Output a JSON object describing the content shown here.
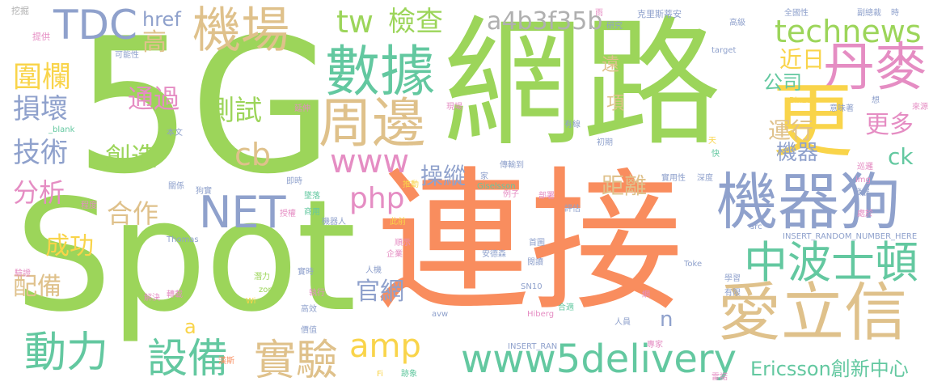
{
  "palette": [
    "#9cd55a",
    "#f98d5e",
    "#dfc18b",
    "#8fa1cc",
    "#e58dc3",
    "#63c8a0",
    "#f9d44a",
    "#b0b0b0"
  ],
  "words": [
    {
      "text": "網路",
      "color": "#9cd55a",
      "vertical": false
    },
    {
      "text": "連接",
      "color": "#f98d5e",
      "vertical": false
    },
    {
      "text": "5G",
      "color": "#9cd55a",
      "vertical": false
    },
    {
      "text": "Spot",
      "color": "#9cd55a",
      "vertical": false
    },
    {
      "text": "機器狗",
      "color": "#8fa1cc",
      "vertical": false
    },
    {
      "text": "愛立信",
      "color": "#dfc18b",
      "vertical": false
    },
    {
      "text": "數據",
      "color": "#63c8a0",
      "vertical": false
    },
    {
      "text": "機場",
      "color": "#dfc18b",
      "vertical": false
    },
    {
      "text": "丹麥",
      "color": "#e58dc3",
      "vertical": false
    },
    {
      "text": "更",
      "color": "#f9d44a",
      "vertical": false
    },
    {
      "text": "周邊",
      "color": "#dfc18b",
      "vertical": false
    },
    {
      "text": "中波士頓",
      "color": "#63c8a0",
      "vertical": false
    },
    {
      "text": "www5delivery",
      "color": "#63c8a0",
      "vertical": false
    },
    {
      "text": "TDC",
      "color": "#8fa1cc",
      "vertical": false
    },
    {
      "text": "NET",
      "color": "#8fa1cc",
      "vertical": false
    },
    {
      "text": "設備",
      "color": "#63c8a0",
      "vertical": false
    },
    {
      "text": "實驗",
      "color": "#dfc18b",
      "vertical": false
    },
    {
      "text": "動力",
      "color": "#63c8a0",
      "vertical": false
    },
    {
      "text": "technews",
      "color": "#9cd55a",
      "vertical": false
    },
    {
      "text": "a4b3f35b",
      "color": "#b0b0b0",
      "vertical": false
    },
    {
      "text": "www",
      "color": "#e58dc3",
      "vertical": false
    },
    {
      "text": "php",
      "color": "#e58dc3",
      "vertical": false
    },
    {
      "text": "amp",
      "color": "#f9d44a",
      "vertical": false
    },
    {
      "text": "cb",
      "color": "#dfc18b",
      "vertical": false
    },
    {
      "text": "tw",
      "color": "#9cd55a",
      "vertical": false
    },
    {
      "text": "檢查",
      "color": "#9cd55a",
      "vertical": false
    },
    {
      "text": "測試",
      "color": "#9cd55a",
      "vertical": false
    },
    {
      "text": "技術",
      "color": "#8fa1cc",
      "vertical": false
    },
    {
      "text": "創造",
      "color": "#9cd55a",
      "vertical": false
    },
    {
      "text": "圍欄",
      "color": "#f9d44a",
      "vertical": false
    },
    {
      "text": "損壞",
      "color": "#8fa1cc",
      "vertical": false
    },
    {
      "text": "通過",
      "color": "#e58dc3",
      "vertical": false
    },
    {
      "text": "分析",
      "color": "#e58dc3",
      "vertical": false
    },
    {
      "text": "合作",
      "color": "#dfc18b",
      "vertical": false
    },
    {
      "text": "成功",
      "color": "#f9d44a",
      "vertical": false
    },
    {
      "text": "配備",
      "color": "#dfc18b",
      "vertical": false
    },
    {
      "text": "Ericsson創新中心",
      "color": "#63c8a0",
      "vertical": false
    },
    {
      "text": "運行",
      "color": "#dfc18b",
      "vertical": false
    },
    {
      "text": "更多",
      "color": "#e58dc3",
      "vertical": false
    },
    {
      "text": "機器",
      "color": "#8fa1cc",
      "vertical": false
    },
    {
      "text": "公司",
      "color": "#63c8a0",
      "vertical": false
    },
    {
      "text": "近日",
      "color": "#f9d44a",
      "vertical": false
    },
    {
      "text": "距離",
      "color": "#dfc18b",
      "vertical": false
    },
    {
      "text": "操縱",
      "color": "#8fa1cc",
      "vertical": false
    },
    {
      "text": "官網",
      "color": "#8fa1cc",
      "vertical": false
    },
    {
      "text": "href",
      "color": "#8fa1cc",
      "vertical": false
    },
    {
      "text": "高",
      "color": "#dfc18b",
      "vertical": false
    },
    {
      "text": "ck",
      "color": "#63c8a0",
      "vertical": false
    },
    {
      "text": "遠",
      "color": "#dfc18b",
      "vertical": false
    },
    {
      "text": "項",
      "color": "#dfc18b",
      "vertical": false
    },
    {
      "text": "n",
      "color": "#8fa1cc",
      "vertical": false
    },
    {
      "text": "a",
      "color": "#f9d44a",
      "vertical": false
    },
    {
      "text": "挖掘",
      "color": "#b0b0b0",
      "vertical": false
    },
    {
      "text": "提供",
      "color": "#e58dc3",
      "vertical": false
    },
    {
      "text": "可能性",
      "color": "#8fa1cc",
      "vertical": false
    },
    {
      "text": "_blank",
      "color": "#63c8a0",
      "vertical": false
    },
    {
      "text": "延伸",
      "color": "#e58dc3",
      "vertical": false
    },
    {
      "text": "本文",
      "color": "#8fa1cc",
      "vertical": false
    },
    {
      "text": "即時",
      "color": "#8fa1cc",
      "vertical": false
    },
    {
      "text": "狗實",
      "color": "#8fa1cc",
      "vertical": false
    },
    {
      "text": "關係",
      "color": "#8fa1cc",
      "vertical": false
    },
    {
      "text": "程度",
      "color": "#e58dc3",
      "vertical": false
    },
    {
      "text": "墜落",
      "color": "#63c8a0",
      "vertical": false
    },
    {
      "text": "商用",
      "color": "#63c8a0",
      "vertical": false
    },
    {
      "text": "授權",
      "color": "#e58dc3",
      "vertical": false
    },
    {
      "text": "機器人",
      "color": "#8fa1cc",
      "vertical": false
    },
    {
      "text": "此前",
      "color": "#f9d44a",
      "vertical": false
    },
    {
      "text": "推動",
      "color": "#f9d44a",
      "vertical": false
    },
    {
      "text": "Thomas",
      "color": "#8fa1cc",
      "vertical": false
    },
    {
      "text": "驗證",
      "color": "#e58dc3",
      "vertical": false
    },
    {
      "text": "潛力",
      "color": "#9cd55a",
      "vertical": false
    },
    {
      "text": "轉載",
      "color": "#e58dc3",
      "vertical": false
    },
    {
      "text": "解決",
      "color": "#e58dc3",
      "vertical": false
    },
    {
      "text": "zoneid",
      "color": "#9cd55a",
      "vertical": false
    },
    {
      "text": "Wi",
      "color": "#f9d44a",
      "vertical": false
    },
    {
      "text": "實時",
      "color": "#8fa1cc",
      "vertical": false
    },
    {
      "text": "執行",
      "color": "#e58dc3",
      "vertical": false
    },
    {
      "text": "高效",
      "color": "#8fa1cc",
      "vertical": false
    },
    {
      "text": "價值",
      "color": "#8fa1cc",
      "vertical": false
    },
    {
      "text": "漢斯",
      "color": "#f98d5e",
      "vertical": false
    },
    {
      "text": "Fi",
      "color": "#f9d44a",
      "vertical": false
    },
    {
      "text": "跡象",
      "color": "#63c8a0",
      "vertical": false
    },
    {
      "text": "INSERT_RAN",
      "color": "#8fa1cc",
      "vertical": false
    },
    {
      "text": "人機",
      "color": "#8fa1cc",
      "vertical": false
    },
    {
      "text": "企業",
      "color": "#e58dc3",
      "vertical": false
    },
    {
      "text": "順示",
      "color": "#e58dc3",
      "vertical": false
    },
    {
      "text": "安德森",
      "color": "#8fa1cc",
      "vertical": false
    },
    {
      "text": "Giselsson",
      "color": "#63c8a0",
      "vertical": false
    },
    {
      "text": "例子",
      "color": "#e58dc3",
      "vertical": false
    },
    {
      "text": "傳輸到",
      "color": "#8fa1cc",
      "vertical": false
    },
    {
      "text": "家",
      "color": "#8fa1cc",
      "vertical": false
    },
    {
      "text": "部署",
      "color": "#e58dc3",
      "vertical": false
    },
    {
      "text": "評估",
      "color": "#8fa1cc",
      "vertical": false
    },
    {
      "text": "首圖",
      "color": "#8fa1cc",
      "vertical": false
    },
    {
      "text": "閱讀",
      "color": "#8fa1cc",
      "vertical": false
    },
    {
      "text": "SN10",
      "color": "#8fa1cc",
      "vertical": false
    },
    {
      "text": "avw",
      "color": "#8fa1cc",
      "vertical": false
    },
    {
      "text": "Hiberg",
      "color": "#e58dc3",
      "vertical": false
    },
    {
      "text": "合適",
      "color": "#63c8a0",
      "vertical": false
    },
    {
      "text": "人員",
      "color": "#8fa1cc",
      "vertical": false
    },
    {
      "text": "網",
      "color": "#e58dc3",
      "vertical": false
    },
    {
      "text": "專家",
      "color": "#e58dc3",
      "vertical": false
    },
    {
      "text": "雷諾",
      "color": "#e58dc3",
      "vertical": false
    },
    {
      "text": "雨",
      "color": "#e58dc3",
      "vertical": false
    },
    {
      "text": "研究",
      "color": "#8fa1cc",
      "vertical": false
    },
    {
      "text": "克里斯蒂安",
      "color": "#8fa1cc",
      "vertical": false
    },
    {
      "text": "高級",
      "color": "#8fa1cc",
      "vertical": false
    },
    {
      "text": "全國性",
      "color": "#8fa1cc",
      "vertical": false
    },
    {
      "text": "副總裁",
      "color": "#8fa1cc",
      "vertical": false
    },
    {
      "text": "時",
      "color": "#8fa1cc",
      "vertical": false
    },
    {
      "text": "target",
      "color": "#8fa1cc",
      "vertical": false
    },
    {
      "text": "Binzer",
      "color": "#f9d44a",
      "vertical": false
    },
    {
      "text": "意味著",
      "color": "#8fa1cc",
      "vertical": false
    },
    {
      "text": "想",
      "color": "#8fa1cc",
      "vertical": false
    },
    {
      "text": "來源",
      "color": "#e58dc3",
      "vertical": false
    },
    {
      "text": "有線",
      "color": "#8fa1cc",
      "vertical": false
    },
    {
      "text": "初期",
      "color": "#8fa1cc",
      "vertical": false
    },
    {
      "text": "天",
      "color": "#f9d44a",
      "vertical": false
    },
    {
      "text": "快",
      "color": "#63c8a0",
      "vertical": false
    },
    {
      "text": "巡邏",
      "color": "#e58dc3",
      "vertical": false
    },
    {
      "text": "實用性",
      "color": "#8fa1cc",
      "vertical": false
    },
    {
      "text": "深度",
      "color": "#8fa1cc",
      "vertical": false
    },
    {
      "text": "img",
      "color": "#e58dc3",
      "vertical": false
    },
    {
      "text": "發展",
      "color": "#8fa1cc",
      "vertical": false
    },
    {
      "text": "處於",
      "color": "#e58dc3",
      "vertical": false
    },
    {
      "text": "src",
      "color": "#8fa1cc",
      "vertical": false
    },
    {
      "text": "INSERT_RANDOM_NUMBER_HERE",
      "color": "#8fa1cc",
      "vertical": false
    },
    {
      "text": "Toke",
      "color": "#8fa1cc",
      "vertical": false
    },
    {
      "text": "學習",
      "color": "#8fa1cc",
      "vertical": false
    },
    {
      "text": "有限",
      "color": "#8fa1cc",
      "vertical": false
    },
    {
      "text": "現場",
      "color": "#e58dc3",
      "vertical": false
    }
  ]
}
